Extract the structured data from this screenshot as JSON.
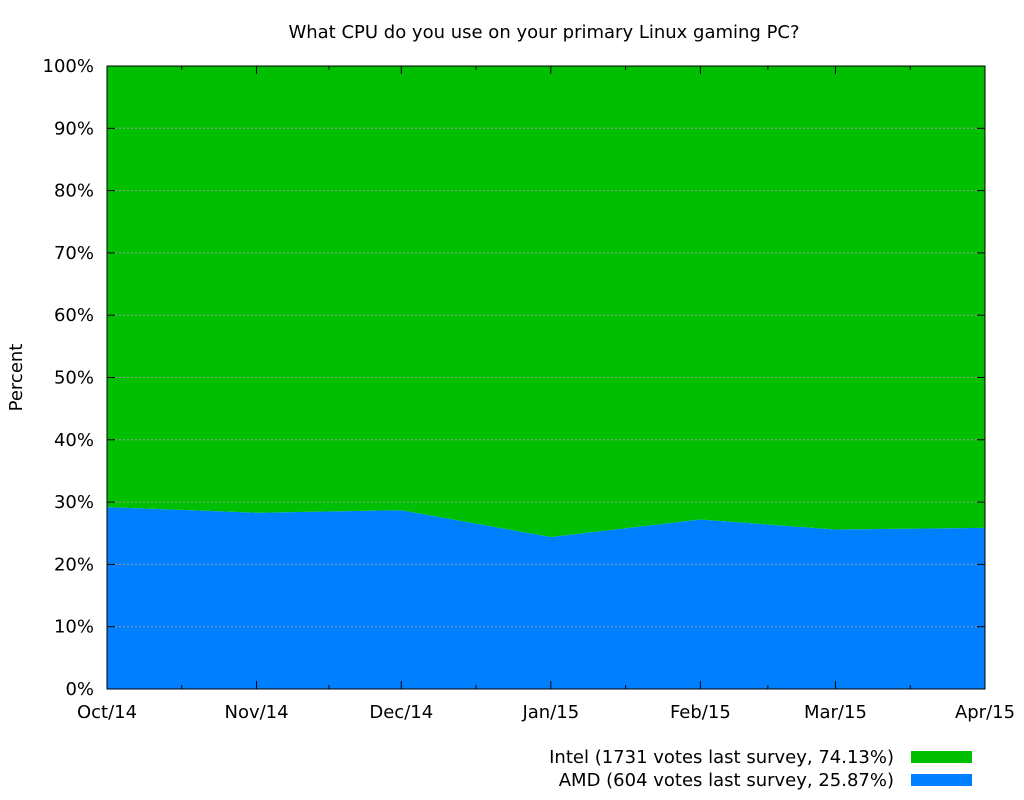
{
  "chart_data": {
    "type": "area",
    "stacked": true,
    "percent": true,
    "title": "What CPU do you use on your primary Linux gaming PC?",
    "xlabel": "",
    "ylabel": "Percent",
    "x_tick_labels": [
      "Oct/14",
      "Nov/14",
      "Dec/14",
      "Jan/15",
      "Feb/15",
      "Mar/15",
      "Apr/15"
    ],
    "x_dates": [
      "2014-10-01",
      "2014-11-01",
      "2014-12-01",
      "2015-01-01",
      "2015-02-01",
      "2015-03-01",
      "2015-04-01"
    ],
    "ylim": [
      0,
      100
    ],
    "y_ticks": [
      0,
      10,
      20,
      30,
      40,
      50,
      60,
      70,
      80,
      90,
      100
    ],
    "y_tick_labels": [
      "0%",
      "10%",
      "20%",
      "30%",
      "40%",
      "50%",
      "60%",
      "70%",
      "80%",
      "90%",
      "100%"
    ],
    "grid": true,
    "legend_position": "bottom-right",
    "series": [
      {
        "name": "Intel (1731 votes last survey, 74.13%)",
        "color": "#00bf00",
        "values": [
          70.8,
          71.7,
          71.3,
          75.6,
          72.8,
          74.4,
          74.13
        ]
      },
      {
        "name": "AMD (604 votes last survey, 25.87%)",
        "color": "#0080ff",
        "values": [
          29.2,
          28.3,
          28.7,
          24.4,
          27.2,
          25.6,
          25.87
        ]
      }
    ]
  }
}
